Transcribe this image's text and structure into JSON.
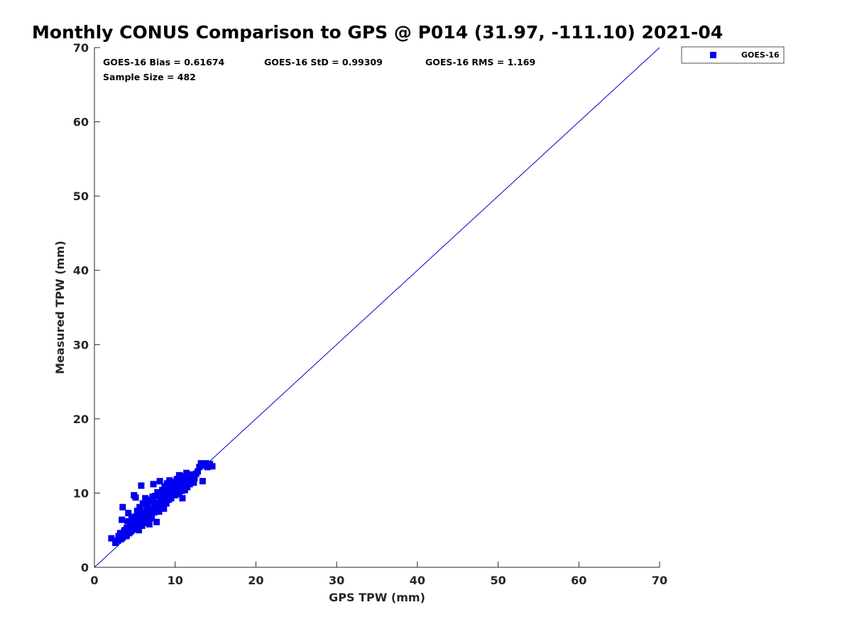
{
  "chart_data": {
    "type": "scatter",
    "title": "Monthly CONUS Comparison to GPS @ P014 (31.97, -111.10) 2021-04",
    "xlabel": "GPS TPW (mm)",
    "ylabel": "Measured TPW (mm)",
    "xlim": [
      0,
      70
    ],
    "ylim": [
      0,
      70
    ],
    "xticks": [
      "0",
      "10",
      "20",
      "30",
      "40",
      "50",
      "60",
      "70"
    ],
    "yticks": [
      "0",
      "10",
      "20",
      "30",
      "40",
      "50",
      "60",
      "70"
    ],
    "grid": false,
    "legend_position": "top-right-outside",
    "stats": {
      "bias": "GOES-16 Bias = 0.61674",
      "std": "GOES-16 StD = 0.99309",
      "rms": "GOES-16 RMS = 1.169",
      "sample": "Sample Size = 482"
    },
    "reference_line": {
      "x": [
        0,
        70
      ],
      "y": [
        0,
        70
      ],
      "color": "#0000cc"
    },
    "series": [
      {
        "name": "GOES-16",
        "color": "#0000ee",
        "marker": "square",
        "points": [
          [
            2.1,
            3.9
          ],
          [
            2.6,
            3.3
          ],
          [
            2.9,
            3.6
          ],
          [
            3.0,
            4.2
          ],
          [
            3.2,
            4.6
          ],
          [
            3.3,
            3.8
          ],
          [
            3.5,
            4.0
          ],
          [
            3.6,
            4.5
          ],
          [
            3.4,
            6.4
          ],
          [
            3.5,
            8.1
          ],
          [
            3.8,
            5.0
          ],
          [
            3.9,
            4.2
          ],
          [
            4.0,
            5.3
          ],
          [
            4.1,
            6.2
          ],
          [
            4.2,
            7.3
          ],
          [
            4.3,
            4.6
          ],
          [
            4.4,
            5.6
          ],
          [
            4.5,
            4.8
          ],
          [
            4.6,
            6.5
          ],
          [
            4.7,
            5.9
          ],
          [
            4.8,
            5.1
          ],
          [
            4.9,
            9.7
          ],
          [
            5.1,
            9.4
          ],
          [
            5.0,
            6.8
          ],
          [
            5.2,
            5.4
          ],
          [
            5.3,
            7.6
          ],
          [
            5.4,
            6.1
          ],
          [
            5.5,
            5.0
          ],
          [
            5.6,
            8.1
          ],
          [
            5.7,
            6.6
          ],
          [
            5.8,
            11.0
          ],
          [
            5.8,
            7.2
          ],
          [
            5.9,
            5.6
          ],
          [
            6.0,
            8.6
          ],
          [
            6.1,
            6.9
          ],
          [
            6.2,
            6.0
          ],
          [
            6.3,
            9.3
          ],
          [
            6.4,
            7.6
          ],
          [
            6.5,
            6.4
          ],
          [
            6.6,
            8.3
          ],
          [
            6.7,
            7.1
          ],
          [
            6.8,
            5.8
          ],
          [
            6.9,
            9.0
          ],
          [
            7.0,
            7.9
          ],
          [
            7.1,
            6.6
          ],
          [
            7.2,
            8.8
          ],
          [
            7.3,
            11.2
          ],
          [
            7.4,
            7.4
          ],
          [
            7.5,
            9.6
          ],
          [
            7.6,
            8.2
          ],
          [
            7.7,
            6.1
          ],
          [
            7.8,
            10.1
          ],
          [
            7.9,
            8.7
          ],
          [
            8.0,
            7.5
          ],
          [
            8.1,
            11.6
          ],
          [
            8.2,
            9.3
          ],
          [
            8.3,
            8.0
          ],
          [
            8.4,
            10.4
          ],
          [
            8.5,
            9.0
          ],
          [
            8.6,
            7.9
          ],
          [
            8.7,
            10.9
          ],
          [
            8.8,
            9.6
          ],
          [
            8.9,
            8.6
          ],
          [
            9.0,
            11.3
          ],
          [
            9.1,
            10.0
          ],
          [
            9.2,
            9.1
          ],
          [
            9.3,
            11.7
          ],
          [
            9.4,
            10.4
          ],
          [
            9.5,
            9.3
          ],
          [
            9.6,
            10.9
          ],
          [
            9.7,
            10.0
          ],
          [
            9.8,
            11.5
          ],
          [
            9.9,
            10.6
          ],
          [
            10.0,
            9.7
          ],
          [
            10.1,
            11.2
          ],
          [
            10.2,
            10.3
          ],
          [
            10.3,
            11.9
          ],
          [
            10.4,
            10.8
          ],
          [
            10.5,
            9.9
          ],
          [
            10.6,
            11.5
          ],
          [
            10.7,
            10.6
          ],
          [
            10.8,
            12.3
          ],
          [
            10.9,
            9.3
          ],
          [
            11.0,
            11.0
          ],
          [
            11.1,
            12.0
          ],
          [
            11.2,
            10.4
          ],
          [
            11.3,
            11.7
          ],
          [
            11.5,
            10.8
          ],
          [
            11.6,
            12.2
          ],
          [
            11.8,
            11.2
          ],
          [
            12.0,
            11.8
          ],
          [
            12.2,
            12.5
          ],
          [
            12.4,
            12.0
          ],
          [
            12.6,
            12.6
          ],
          [
            12.8,
            12.9
          ],
          [
            13.0,
            13.5
          ],
          [
            13.2,
            14.0
          ],
          [
            13.4,
            11.6
          ],
          [
            13.6,
            13.7
          ],
          [
            13.8,
            14.0
          ],
          [
            14.0,
            13.5
          ],
          [
            14.3,
            13.9
          ],
          [
            14.6,
            13.6
          ],
          [
            12.3,
            11.4
          ],
          [
            7.0,
            9.1
          ],
          [
            6.3,
            8.5
          ],
          [
            5.6,
            7.3
          ],
          [
            8.4,
            9.9
          ],
          [
            9.6,
            9.9
          ],
          [
            4.8,
            6.1
          ],
          [
            6.2,
            7.1
          ],
          [
            7.5,
            8.3
          ],
          [
            5.0,
            5.8
          ],
          [
            4.4,
            5.3
          ],
          [
            5.3,
            5.6
          ],
          [
            6.8,
            7.4
          ],
          [
            8.9,
            9.0
          ],
          [
            7.8,
            8.4
          ],
          [
            10.2,
            11.8
          ],
          [
            9.2,
            10.6
          ],
          [
            6.0,
            6.4
          ],
          [
            5.5,
            6.0
          ],
          [
            7.3,
            7.8
          ],
          [
            8.6,
            10.0
          ],
          [
            9.9,
            11.0
          ],
          [
            11.4,
            12.7
          ],
          [
            10.5,
            12.4
          ],
          [
            4.0,
            4.3
          ],
          [
            3.7,
            4.9
          ],
          [
            4.6,
            5.0
          ],
          [
            6.5,
            7.9
          ],
          [
            7.2,
            9.5
          ],
          [
            8.1,
            8.4
          ],
          [
            9.4,
            9.7
          ],
          [
            10.8,
            10.3
          ],
          [
            11.9,
            12.4
          ]
        ]
      }
    ]
  }
}
